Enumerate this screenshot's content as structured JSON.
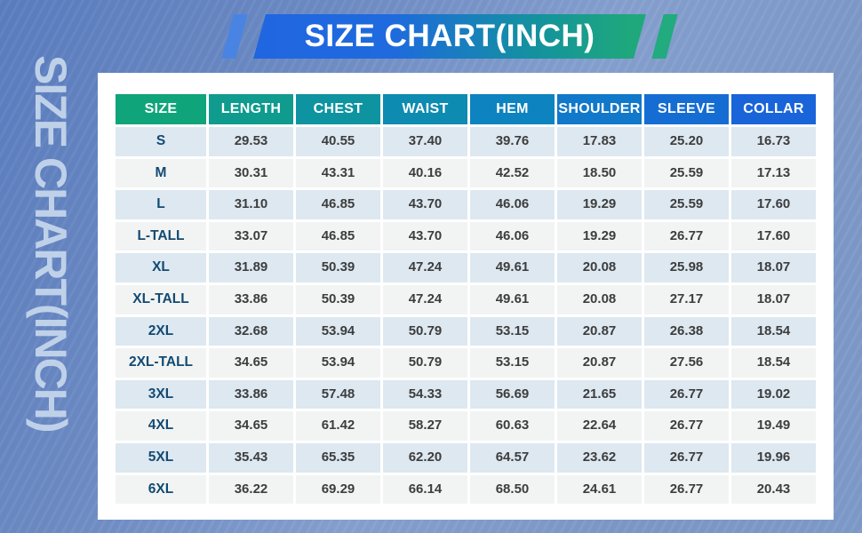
{
  "banner": {
    "title": "SIZE CHART(INCH)"
  },
  "side_watermark": "SIZE CHART(INCH)",
  "chart_data": {
    "type": "table",
    "title": "SIZE CHART(INCH)",
    "columns": [
      "SIZE",
      "LENGTH",
      "CHEST",
      "WAIST",
      "HEM",
      "SHOULDER",
      "SLEEVE",
      "COLLAR"
    ],
    "rows": [
      [
        "S",
        "29.53",
        "40.55",
        "37.40",
        "39.76",
        "17.83",
        "25.20",
        "16.73"
      ],
      [
        "M",
        "30.31",
        "43.31",
        "40.16",
        "42.52",
        "18.50",
        "25.59",
        "17.13"
      ],
      [
        "L",
        "31.10",
        "46.85",
        "43.70",
        "46.06",
        "19.29",
        "25.59",
        "17.60"
      ],
      [
        "L-TALL",
        "33.07",
        "46.85",
        "43.70",
        "46.06",
        "19.29",
        "26.77",
        "17.60"
      ],
      [
        "XL",
        "31.89",
        "50.39",
        "47.24",
        "49.61",
        "20.08",
        "25.98",
        "18.07"
      ],
      [
        "XL-TALL",
        "33.86",
        "50.39",
        "47.24",
        "49.61",
        "20.08",
        "27.17",
        "18.07"
      ],
      [
        "2XL",
        "32.68",
        "53.94",
        "50.79",
        "53.15",
        "20.87",
        "26.38",
        "18.54"
      ],
      [
        "2XL-TALL",
        "34.65",
        "53.94",
        "50.79",
        "53.15",
        "20.87",
        "27.56",
        "18.54"
      ],
      [
        "3XL",
        "33.86",
        "57.48",
        "54.33",
        "56.69",
        "21.65",
        "26.77",
        "19.02"
      ],
      [
        "4XL",
        "34.65",
        "61.42",
        "58.27",
        "60.63",
        "22.64",
        "26.77",
        "19.49"
      ],
      [
        "5XL",
        "35.43",
        "65.35",
        "62.20",
        "64.57",
        "23.62",
        "26.77",
        "19.96"
      ],
      [
        "6XL",
        "36.22",
        "69.29",
        "66.14",
        "68.50",
        "24.61",
        "26.77",
        "20.43"
      ]
    ]
  },
  "colors": {
    "header_gradient": [
      "#10a47b",
      "#0f9b8e",
      "#0e93a0",
      "#0d8bb0",
      "#0d83bf",
      "#1178ca",
      "#156dd3",
      "#1a64da"
    ],
    "banner_gradient_start": "#2066e0",
    "banner_gradient_end": "#1fa87b",
    "left_slash": "#4a84e2",
    "right_slash": "#21ab7e",
    "row_alt_blue": "#dde8f1",
    "row_alt_gray": "#f2f4f3",
    "size_label_text": "#134a72",
    "value_text": "#3d3d3d",
    "watermark_text": "#c9daee"
  }
}
